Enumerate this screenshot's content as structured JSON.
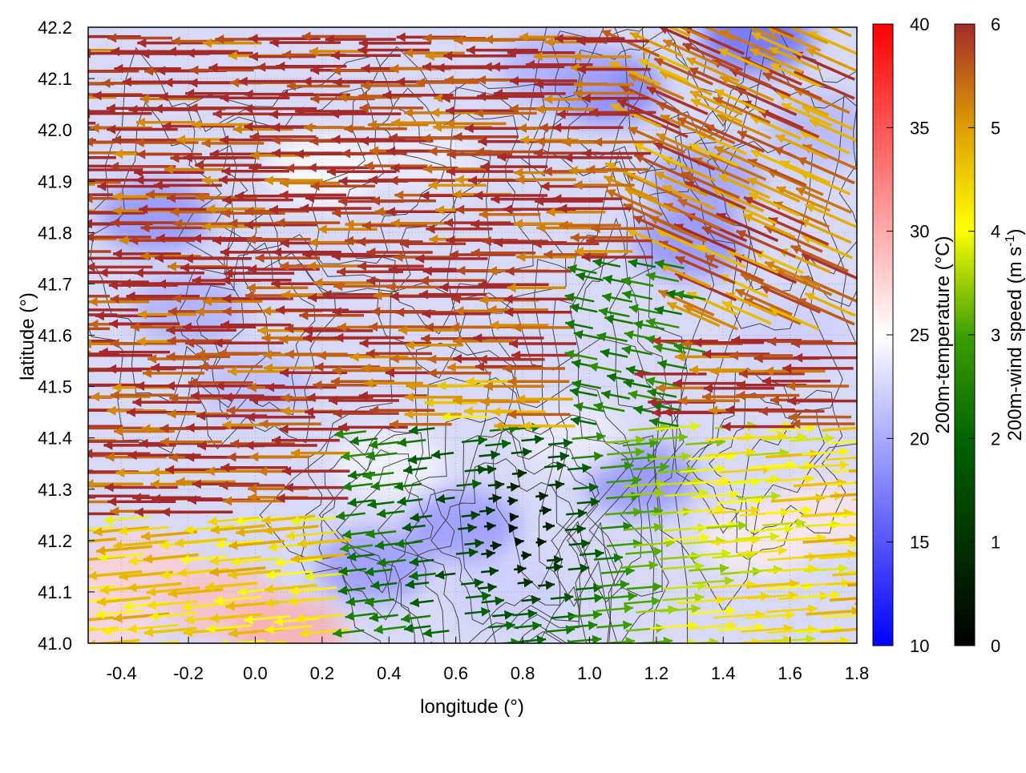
{
  "chart_data": {
    "type": "heatmap",
    "description_series": [
      "200m-temperature field",
      "200m-wind vectors",
      "terrain contours"
    ],
    "xlabel": "longitude (°)",
    "ylabel": "latitude (°)",
    "xlim": [
      -0.5,
      1.8
    ],
    "ylim": [
      41.0,
      42.2
    ],
    "x_ticks": [
      "-0.4",
      "-0.2",
      "0.0",
      "0.2",
      "0.4",
      "0.6",
      "0.8",
      "1.0",
      "1.2",
      "1.4",
      "1.6",
      "1.8"
    ],
    "x_tick_values": [
      -0.4,
      -0.2,
      0.0,
      0.2,
      0.4,
      0.6,
      0.8,
      1.0,
      1.2,
      1.4,
      1.6,
      1.8
    ],
    "y_ticks": [
      "41.0",
      "41.1",
      "41.2",
      "41.3",
      "41.4",
      "41.5",
      "41.6",
      "41.7",
      "41.8",
      "41.9",
      "42.0",
      "42.1",
      "42.2"
    ],
    "y_tick_values": [
      41.0,
      41.1,
      41.2,
      41.3,
      41.4,
      41.5,
      41.6,
      41.7,
      41.8,
      41.9,
      42.0,
      42.1,
      42.2
    ],
    "grid": true,
    "temperature_colorbar": {
      "label": "200m-temperature (°C)",
      "range": [
        10,
        40
      ],
      "ticks": [
        "10",
        "15",
        "20",
        "25",
        "30",
        "35",
        "40"
      ],
      "tick_values": [
        10,
        15,
        20,
        25,
        30,
        35,
        40
      ],
      "colors": [
        "#0000ff",
        "#ffffff",
        "#ff0000"
      ]
    },
    "wind_colorbar": {
      "label_main": "200m-wind speed (m s",
      "label_sup": "-1",
      "label_end": ")",
      "range": [
        0,
        6
      ],
      "ticks": [
        "0",
        "1",
        "2",
        "3",
        "4",
        "5",
        "6"
      ],
      "tick_values": [
        0,
        1,
        2,
        3,
        4,
        5,
        6
      ],
      "colors": [
        "#000000",
        "#006400",
        "#3ca000",
        "#ffff00",
        "#e0a000",
        "#c06020",
        "#a52a2a"
      ]
    },
    "observed_pattern": {
      "west_half_wind": "strong easterly flow (~6 m/s) blowing toward the west",
      "central_south_wind": "weak winds (0-2 m/s) around lon 0.6-1.0, lat 41.0-41.4",
      "east_south_wind": "westerly flow (2-5 m/s) blowing toward the east south of lat 41.4",
      "temperature": "mostly 18-24 °C, warmer (~28 °C) near lon -0.5 to 0.1, lat 41.0-41.2"
    }
  }
}
